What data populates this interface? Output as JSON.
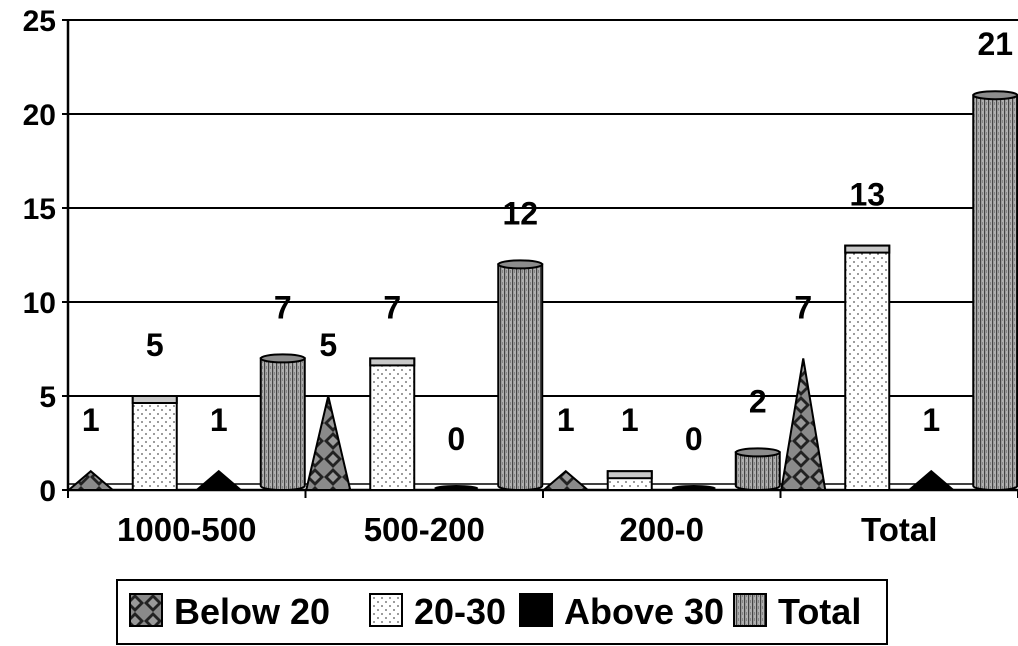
{
  "chart_data": {
    "type": "bar",
    "title": "",
    "xlabel": "",
    "ylabel": "",
    "categories": [
      "1000-500",
      "500-200",
      "200-0",
      "Total"
    ],
    "series": [
      {
        "name": "Below 20",
        "values": [
          1,
          5,
          1,
          7
        ],
        "shape": "pyramid",
        "pattern": "diamond-check",
        "color": "#808080"
      },
      {
        "name": "20-30",
        "values": [
          5,
          7,
          1,
          13
        ],
        "shape": "box",
        "pattern": "dots",
        "color": "#ffffff"
      },
      {
        "name": "Above 30",
        "values": [
          1,
          0,
          0,
          1
        ],
        "shape": "pyramid",
        "pattern": "solid",
        "color": "#000000"
      },
      {
        "name": "Total",
        "values": [
          7,
          12,
          2,
          21
        ],
        "shape": "cylinder",
        "pattern": "vertical-lines",
        "color": "#a0a0a0"
      }
    ],
    "ylim": [
      0,
      25
    ],
    "yticks": [
      0,
      5,
      10,
      15,
      20,
      25
    ],
    "grid": true,
    "legend_position": "bottom"
  }
}
